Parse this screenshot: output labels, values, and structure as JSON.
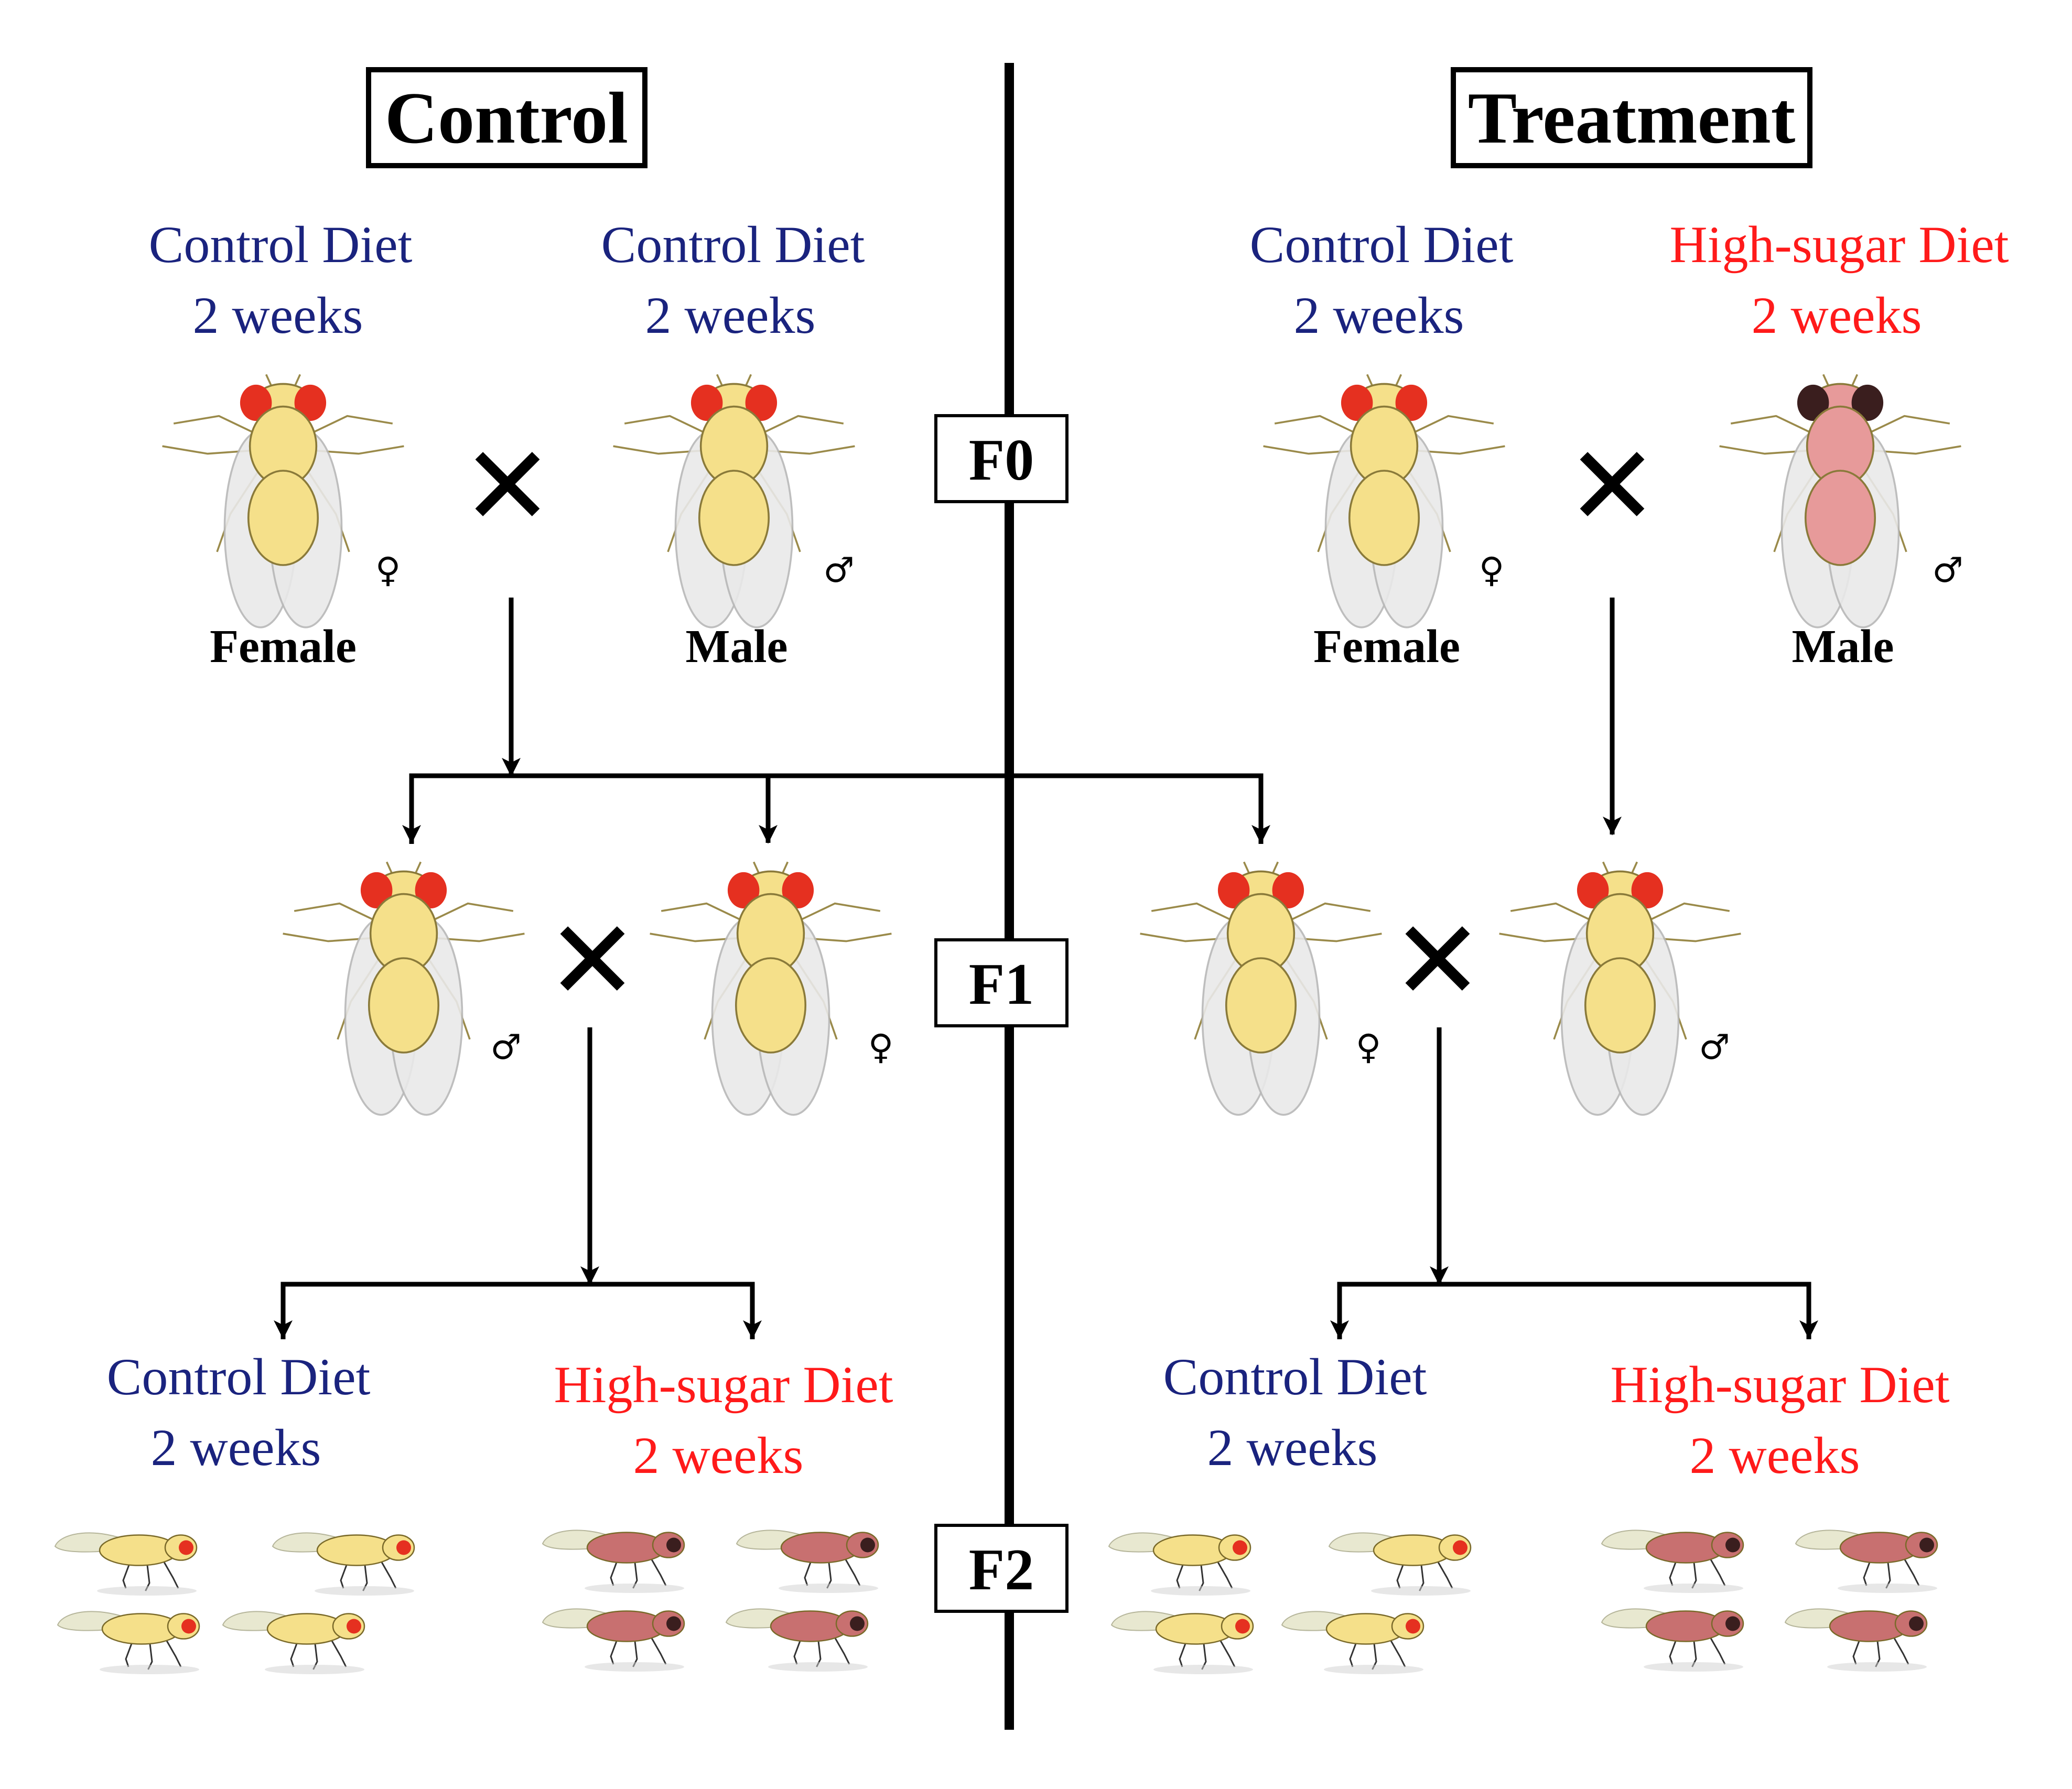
{
  "colors": {
    "control_text": "#1a237e",
    "treatment_text": "#ff1a1a",
    "line": "#000000",
    "normal_fly_body": "#f5e08a",
    "normal_fly_eye": "#e53020",
    "sugar_fly_body": "#e79a9a",
    "sugar_fly_eye": "#3a1e1e",
    "wing": "#e6e6e6"
  },
  "headers": {
    "control": "Control",
    "treatment": "Treatment"
  },
  "generations": {
    "f0": "F0",
    "f1": "F1",
    "f2": "F2"
  },
  "labels": {
    "control_diet": "Control Diet",
    "high_sugar_diet": "High-sugar Diet",
    "duration": "2 weeks",
    "female": "Female",
    "male": "Male",
    "female_symbol": "♀",
    "male_symbol": "♂",
    "cross_symbol": "✕"
  },
  "f0": {
    "control": [
      {
        "sex": "female",
        "diet": "control"
      },
      {
        "sex": "male",
        "diet": "control"
      }
    ],
    "treatment": [
      {
        "sex": "female",
        "diet": "control"
      },
      {
        "sex": "male",
        "diet": "high-sugar"
      }
    ]
  },
  "f1": {
    "control": [
      "male",
      "female"
    ],
    "treatment": [
      "female",
      "male"
    ]
  },
  "f2": {
    "control": [
      "control",
      "high-sugar"
    ],
    "treatment": [
      "control",
      "high-sugar"
    ]
  }
}
